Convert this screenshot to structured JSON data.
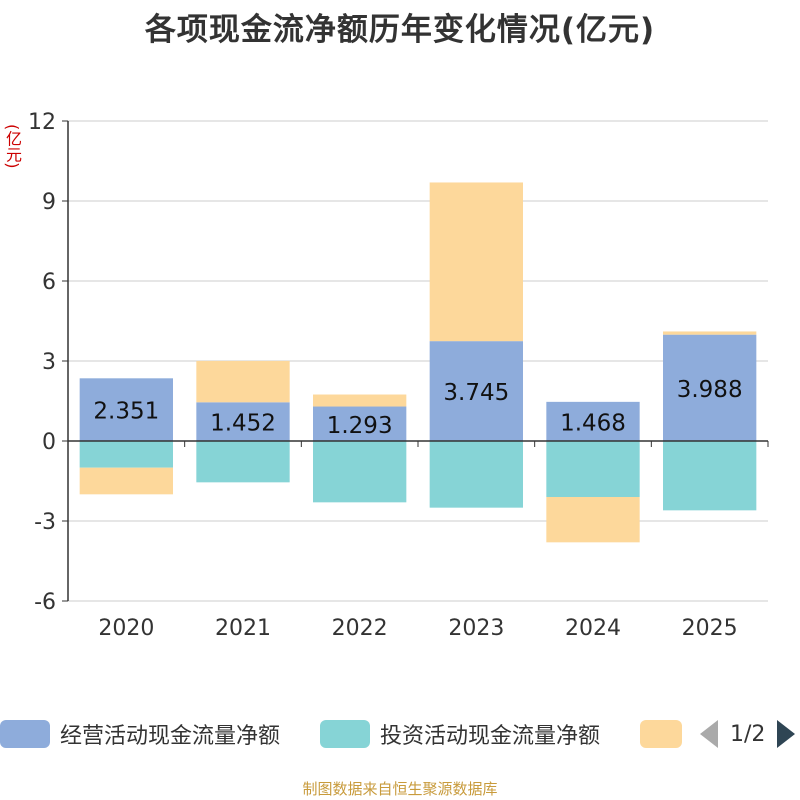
{
  "chart_data": {
    "type": "bar",
    "stacked": true,
    "title": "各项现金流净额历年变化情况(亿元)",
    "ylabel": "(亿元)",
    "xlabel": "",
    "categories": [
      "2020",
      "2021",
      "2022",
      "2023",
      "2024",
      "2025"
    ],
    "ylim": [
      -6,
      12
    ],
    "yticks": [
      -6,
      -3,
      0,
      3,
      6,
      9,
      12
    ],
    "grid": true,
    "series": [
      {
        "name": "经营活动现金流量净额",
        "color": "#8eacdb",
        "values": [
          2.351,
          1.452,
          1.293,
          3.745,
          1.468,
          3.988
        ],
        "show_labels": true
      },
      {
        "name": "投资活动现金流量净额",
        "color": "#86d4d6",
        "values": [
          -1.0,
          -1.55,
          -2.3,
          -2.5,
          -2.1,
          -2.6
        ],
        "show_labels": false
      },
      {
        "name": "",
        "color": "#fdd89b",
        "values": [
          -1.0,
          1.55,
          0.45,
          5.95,
          -1.7,
          0.12
        ],
        "show_labels": false
      }
    ],
    "legend_position": "bottom"
  },
  "legend": {
    "page": "1/2"
  },
  "footer": "制图数据来自恒生聚源数据库"
}
